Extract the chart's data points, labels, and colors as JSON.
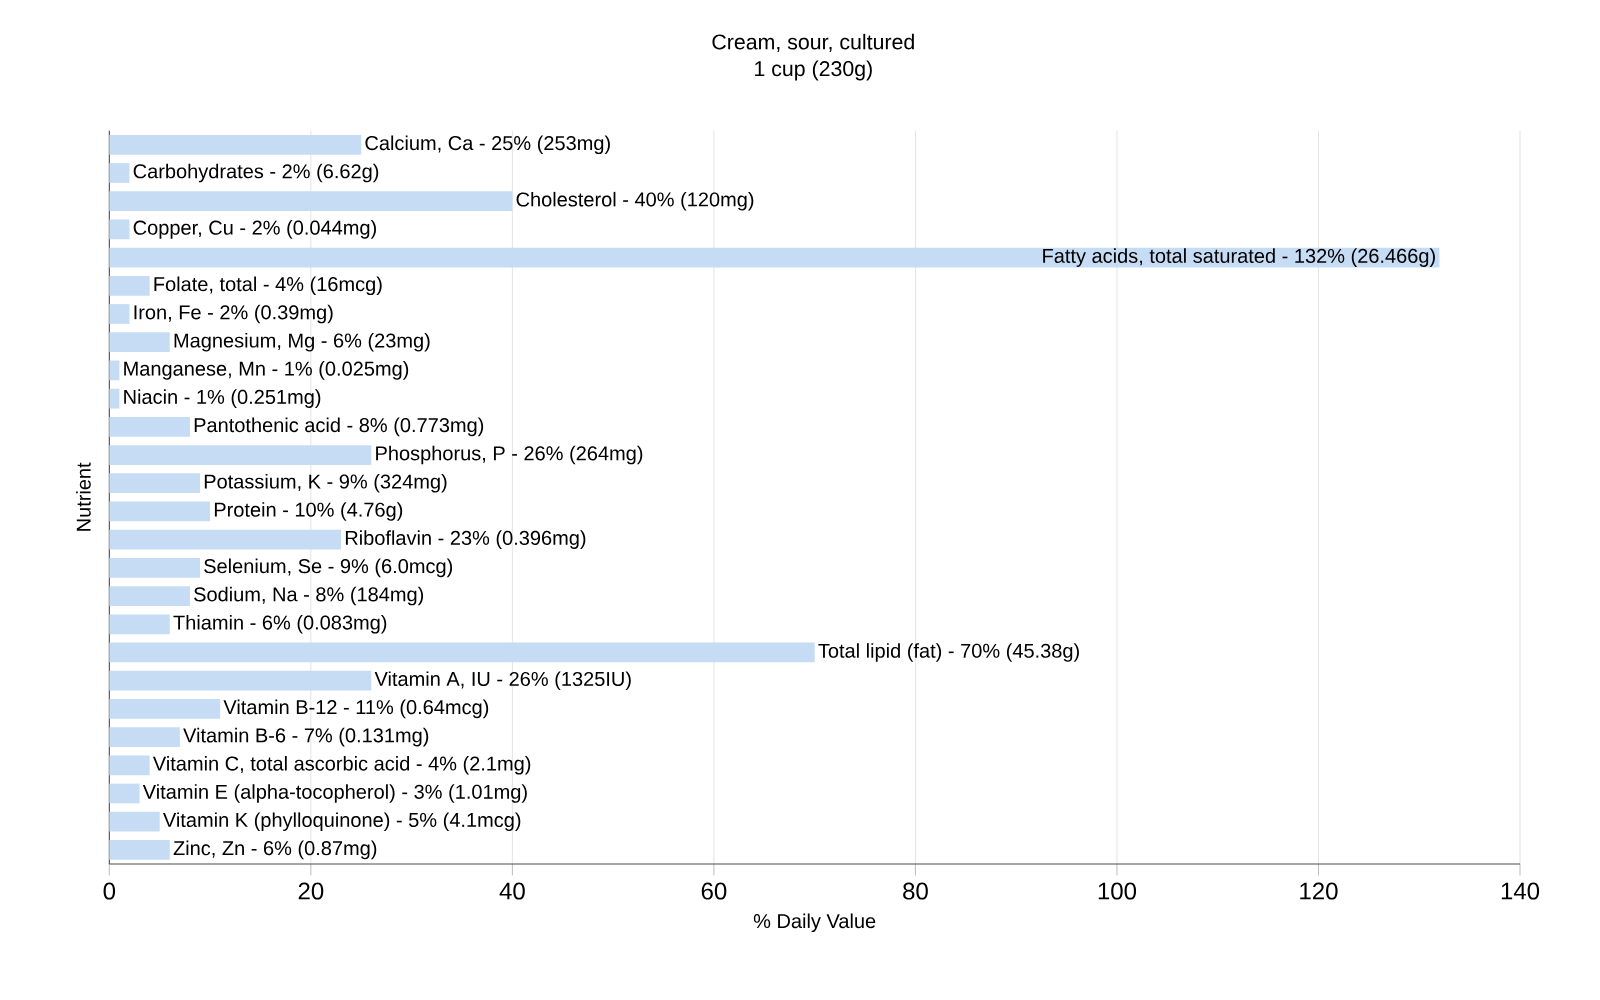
{
  "chart_data": {
    "type": "bar",
    "orientation": "horizontal",
    "title": "Cream, sour, cultured",
    "subtitle": "1 cup (230g)",
    "xlabel": "% Daily Value",
    "ylabel": "Nutrient",
    "categories": [
      "Calcium, Ca - 25% (253mg)",
      "Carbohydrates - 2% (6.62g)",
      "Cholesterol - 40% (120mg)",
      "Copper, Cu - 2% (0.044mg)",
      "Fatty acids, total saturated - 132% (26.466g)",
      "Folate, total - 4% (16mcg)",
      "Iron, Fe - 2% (0.39mg)",
      "Magnesium, Mg - 6% (23mg)",
      "Manganese, Mn - 1% (0.025mg)",
      "Niacin - 1% (0.251mg)",
      "Pantothenic acid - 8% (0.773mg)",
      "Phosphorus, P - 26% (264mg)",
      "Potassium, K - 9% (324mg)",
      "Protein - 10% (4.76g)",
      "Riboflavin - 23% (0.396mg)",
      "Selenium, Se - 9% (6.0mcg)",
      "Sodium, Na - 8% (184mg)",
      "Thiamin - 6% (0.083mg)",
      "Total lipid (fat) - 70% (45.38g)",
      "Vitamin A, IU - 26% (1325IU)",
      "Vitamin B-12 - 11% (0.64mcg)",
      "Vitamin B-6 - 7% (0.131mg)",
      "Vitamin C, total ascorbic acid - 4% (2.1mg)",
      "Vitamin E (alpha-tocopherol) - 3% (1.01mg)",
      "Vitamin K (phylloquinone) - 5% (4.1mcg)",
      "Zinc, Zn - 6% (0.87mg)"
    ],
    "values": [
      25,
      2,
      40,
      2,
      132,
      4,
      2,
      6,
      1,
      1,
      8,
      26,
      9,
      10,
      23,
      9,
      8,
      6,
      70,
      26,
      11,
      7,
      4,
      3,
      5,
      6
    ],
    "color": "#c6dcf5",
    "xlim": [
      0,
      140
    ],
    "xticks": [
      0,
      20,
      40,
      60,
      80,
      100,
      120,
      140
    ],
    "grid": "x",
    "tick_labels": "x"
  }
}
